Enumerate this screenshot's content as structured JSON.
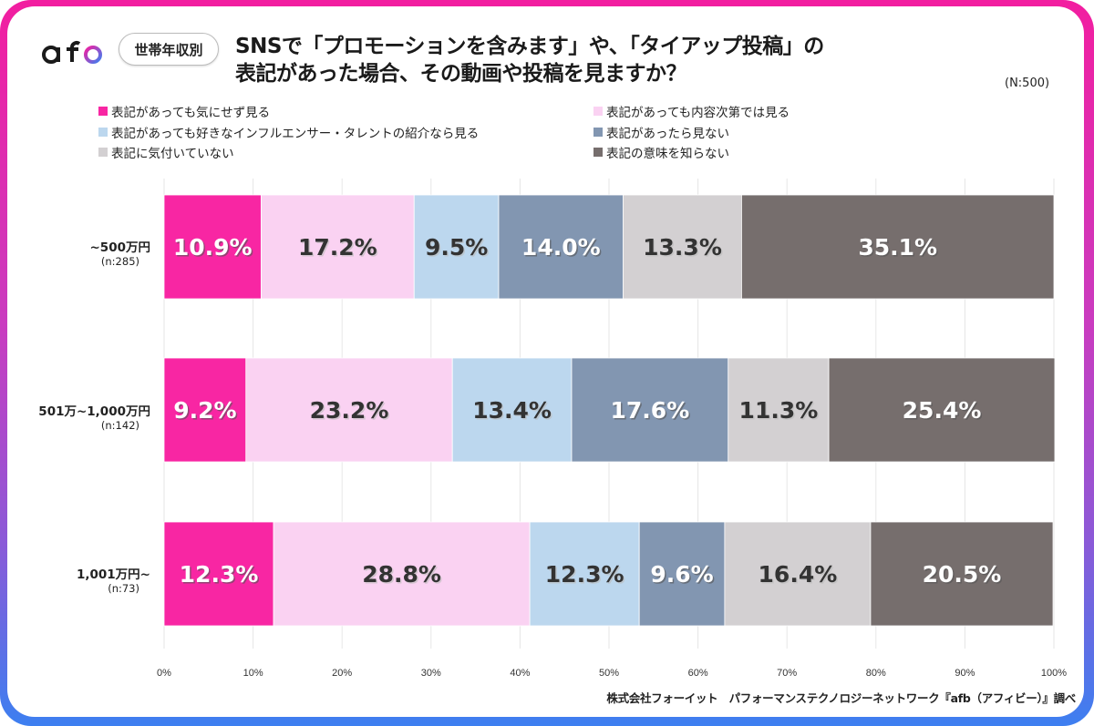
{
  "logo": {
    "text_dark": "af",
    "text_accent": "b"
  },
  "badge": "世帯年収別",
  "title_line1": "SNSで「プロモーションを含みます」や、「タイアップ投稿」の",
  "title_line2": "表記があった場合、その動画や投稿を見ますか？",
  "sample_size": "(N:500)",
  "footer": "株式会社フォーイット　パフォーマンステクノロジーネットワーク『afb（アフィビー）』調べ",
  "chart_data": {
    "type": "bar",
    "orientation": "horizontal",
    "stacked": true,
    "title": "SNSで「プロモーションを含みます」や、「タイアップ投稿」の表記があった場合、その動画や投稿を見ますか？",
    "xlabel": "",
    "ylabel": "",
    "xlim": [
      0,
      100
    ],
    "x_ticks": [
      "0%",
      "10%",
      "20%",
      "30%",
      "40%",
      "50%",
      "60%",
      "70%",
      "80%",
      "90%",
      "100%"
    ],
    "grid": true,
    "legend_position": "top",
    "categories": [
      {
        "label": "~500万円",
        "n": "(n:285)"
      },
      {
        "label": "501万~1,000万円",
        "n": "(n:142)"
      },
      {
        "label": "1,001万円~",
        "n": "(n:73)"
      }
    ],
    "series": [
      {
        "name": "表記があっても気にせず見る",
        "color": "#f826a3",
        "text_color": "#ffffff",
        "values": [
          10.9,
          9.2,
          12.3
        ]
      },
      {
        "name": "表記があっても内容次第では見る",
        "color": "#fad2f2",
        "text_color": "#333333",
        "values": [
          17.2,
          23.2,
          28.8
        ]
      },
      {
        "name": "表記があっても好きなインフルエンサー・タレントの紹介なら見る",
        "color": "#bcd7ee",
        "text_color": "#333333",
        "values": [
          9.5,
          13.4,
          12.3
        ]
      },
      {
        "name": "表記があったら見ない",
        "color": "#8296b1",
        "text_color": "#ffffff",
        "values": [
          14.0,
          17.6,
          9.6
        ]
      },
      {
        "name": "表記に気付いていない",
        "color": "#d3d0d2",
        "text_color": "#333333",
        "values": [
          13.3,
          11.3,
          16.4
        ]
      },
      {
        "name": "表記の意味を知らない",
        "color": "#766e6d",
        "text_color": "#ffffff",
        "values": [
          35.1,
          25.4,
          20.5
        ]
      }
    ],
    "data_labels": [
      [
        "10.9%",
        "9.2%",
        "12.3%"
      ],
      [
        "17.2%",
        "23.2%",
        "28.8%"
      ],
      [
        "9.5%",
        "13.4%",
        "12.3%"
      ],
      [
        "14.0%",
        "17.6%",
        "9.6%"
      ],
      [
        "13.3%",
        "11.3%",
        "16.4%"
      ],
      [
        "35.1%",
        "25.4%",
        "20.5%"
      ]
    ]
  }
}
